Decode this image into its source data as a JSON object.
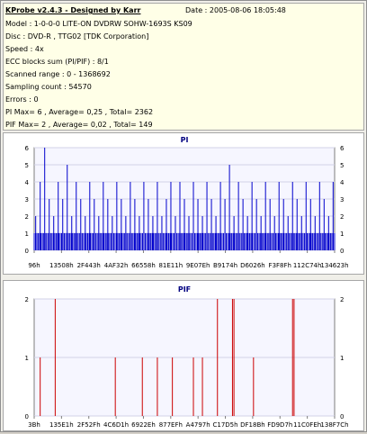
{
  "header": {
    "title": "KProbe v2.4.3 - Designed by Karr",
    "date": "Date : 2005-08-06 18:05:48",
    "lines": [
      "Model : 1-0-0-0 LITE-ON DVDRW SOHW-1693S KS09",
      "Disc : DVD-R , TTG02 [TDK Corporation]",
      "Speed : 4x",
      "ECC blocks sum (PI/PIF) : 8/1",
      "Scanned range : 0 - 1368692",
      "Sampling count : 54570",
      "Errors : 0",
      "PI Max= 6 , Average= 0,25 , Total= 2362",
      "PIF Max= 2 , Average= 0,02 , Total= 149"
    ]
  },
  "chart_data": [
    {
      "type": "bar",
      "title": "PI",
      "ylim": [
        0,
        6
      ],
      "yticks": [
        "0",
        "1",
        "2",
        "3",
        "4",
        "5",
        "6"
      ],
      "xticks": [
        "96h",
        "13508h",
        "2F443h",
        "4AF32h",
        "66558h",
        "81E11h",
        "9E07Eh",
        "B9174h",
        "D6026h",
        "F3F8Fh",
        "112C74h",
        "134623h"
      ],
      "color": "#0000cc",
      "grid": true,
      "note": "Dense random error spikes: baseline mostly 0-1, frequent spikes to 2-4, occasional 5, max 6.",
      "bars": [
        {
          "x": 0.005,
          "v": 2
        },
        {
          "x": 0.02,
          "v": 4
        },
        {
          "x": 0.035,
          "v": 6
        },
        {
          "x": 0.05,
          "v": 3
        },
        {
          "x": 0.065,
          "v": 2
        },
        {
          "x": 0.08,
          "v": 4
        },
        {
          "x": 0.095,
          "v": 3
        },
        {
          "x": 0.11,
          "v": 5
        },
        {
          "x": 0.125,
          "v": 2
        },
        {
          "x": 0.14,
          "v": 4
        },
        {
          "x": 0.155,
          "v": 3
        },
        {
          "x": 0.17,
          "v": 2
        },
        {
          "x": 0.185,
          "v": 4
        },
        {
          "x": 0.2,
          "v": 3
        },
        {
          "x": 0.215,
          "v": 2
        },
        {
          "x": 0.23,
          "v": 4
        },
        {
          "x": 0.245,
          "v": 3
        },
        {
          "x": 0.26,
          "v": 2
        },
        {
          "x": 0.275,
          "v": 4
        },
        {
          "x": 0.29,
          "v": 3
        },
        {
          "x": 0.305,
          "v": 2
        },
        {
          "x": 0.32,
          "v": 4
        },
        {
          "x": 0.335,
          "v": 3
        },
        {
          "x": 0.35,
          "v": 2
        },
        {
          "x": 0.365,
          "v": 4
        },
        {
          "x": 0.38,
          "v": 3
        },
        {
          "x": 0.395,
          "v": 2
        },
        {
          "x": 0.41,
          "v": 4
        },
        {
          "x": 0.425,
          "v": 2
        },
        {
          "x": 0.44,
          "v": 3
        },
        {
          "x": 0.455,
          "v": 4
        },
        {
          "x": 0.47,
          "v": 2
        },
        {
          "x": 0.485,
          "v": 4
        },
        {
          "x": 0.5,
          "v": 3
        },
        {
          "x": 0.515,
          "v": 2
        },
        {
          "x": 0.53,
          "v": 4
        },
        {
          "x": 0.545,
          "v": 3
        },
        {
          "x": 0.56,
          "v": 2
        },
        {
          "x": 0.575,
          "v": 4
        },
        {
          "x": 0.59,
          "v": 3
        },
        {
          "x": 0.605,
          "v": 2
        },
        {
          "x": 0.62,
          "v": 4
        },
        {
          "x": 0.635,
          "v": 3
        },
        {
          "x": 0.65,
          "v": 5
        },
        {
          "x": 0.665,
          "v": 2
        },
        {
          "x": 0.68,
          "v": 4
        },
        {
          "x": 0.695,
          "v": 3
        },
        {
          "x": 0.71,
          "v": 2
        },
        {
          "x": 0.725,
          "v": 4
        },
        {
          "x": 0.74,
          "v": 3
        },
        {
          "x": 0.755,
          "v": 2
        },
        {
          "x": 0.77,
          "v": 4
        },
        {
          "x": 0.785,
          "v": 3
        },
        {
          "x": 0.8,
          "v": 2
        },
        {
          "x": 0.815,
          "v": 4
        },
        {
          "x": 0.83,
          "v": 3
        },
        {
          "x": 0.845,
          "v": 2
        },
        {
          "x": 0.86,
          "v": 4
        },
        {
          "x": 0.875,
          "v": 3
        },
        {
          "x": 0.89,
          "v": 2
        },
        {
          "x": 0.905,
          "v": 4
        },
        {
          "x": 0.92,
          "v": 3
        },
        {
          "x": 0.935,
          "v": 2
        },
        {
          "x": 0.95,
          "v": 4
        },
        {
          "x": 0.965,
          "v": 3
        },
        {
          "x": 0.98,
          "v": 2
        },
        {
          "x": 0.995,
          "v": 4
        }
      ]
    },
    {
      "type": "bar",
      "title": "PIF",
      "ylim": [
        0,
        2
      ],
      "yticks": [
        "0",
        "1",
        "2"
      ],
      "xticks": [
        "3Bh",
        "135E1h",
        "2F52Fh",
        "4C6D1h",
        "6922Eh",
        "877EFh",
        "A4797h",
        "C17D5h",
        "DF18Bh",
        "FD9D7h",
        "11C0FEh",
        "138F7Ch"
      ],
      "color": "#cc0000",
      "grid": true,
      "note": "Sparse spikes; most zero; few 1s; 2s near start, middle, and right side.",
      "bars": [
        {
          "x": 0.02,
          "v": 1
        },
        {
          "x": 0.07,
          "v": 2
        },
        {
          "x": 0.27,
          "v": 1
        },
        {
          "x": 0.36,
          "v": 1
        },
        {
          "x": 0.41,
          "v": 1
        },
        {
          "x": 0.46,
          "v": 1
        },
        {
          "x": 0.53,
          "v": 1
        },
        {
          "x": 0.56,
          "v": 1
        },
        {
          "x": 0.61,
          "v": 2
        },
        {
          "x": 0.66,
          "v": 2
        },
        {
          "x": 0.665,
          "v": 2
        },
        {
          "x": 0.73,
          "v": 1
        },
        {
          "x": 0.86,
          "v": 2
        },
        {
          "x": 0.865,
          "v": 2
        }
      ]
    }
  ]
}
